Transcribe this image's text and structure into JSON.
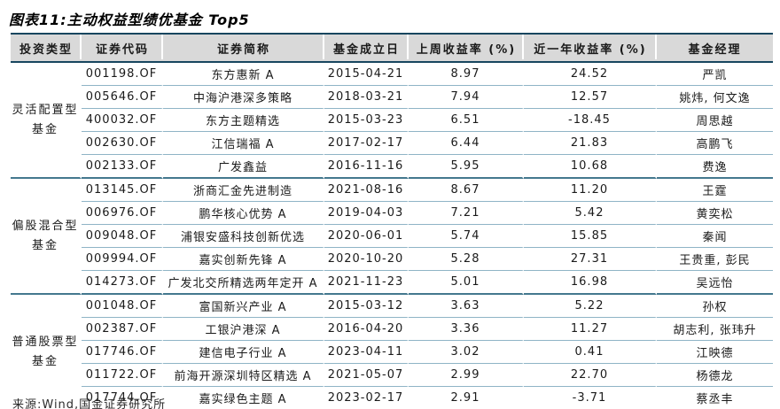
{
  "figure": {
    "title": "图表11:主动权益型绩优基金 Top5",
    "source": "来源:Wind,国金证券研究所"
  },
  "table": {
    "headers": [
      "投资类型",
      "证券代码",
      "证券简称",
      "基金成立日",
      "上周收益率 (%)",
      "近一年收益率 (%)",
      "基金经理"
    ],
    "groups": [
      {
        "type": "灵活配置型基金",
        "type_lines": [
          "灵活配置型",
          "基金"
        ],
        "rows": [
          [
            "001198.OF",
            "东方惠新 A",
            "2015-04-21",
            "8.97",
            "24.52",
            "严凯"
          ],
          [
            "005646.OF",
            "中海沪港深多策略",
            "2018-03-21",
            "7.94",
            "12.57",
            "姚炜, 何文逸"
          ],
          [
            "400032.OF",
            "东方主题精选",
            "2015-03-23",
            "6.51",
            "-18.45",
            "周思越"
          ],
          [
            "002630.OF",
            "江信瑞福 A",
            "2017-02-17",
            "6.44",
            "21.83",
            "高鹏飞"
          ],
          [
            "002133.OF",
            "广发鑫益",
            "2016-11-16",
            "5.95",
            "10.68",
            "费逸"
          ]
        ]
      },
      {
        "type": "偏股混合型基金",
        "type_lines": [
          "偏股混合型",
          "基金"
        ],
        "rows": [
          [
            "013145.OF",
            "浙商汇金先进制造",
            "2021-08-16",
            "8.67",
            "11.20",
            "王霆"
          ],
          [
            "006976.OF",
            "鹏华核心优势 A",
            "2019-04-03",
            "7.21",
            "5.42",
            "黄奕松"
          ],
          [
            "009048.OF",
            "浦银安盛科技创新优选",
            "2020-06-01",
            "5.74",
            "15.85",
            "秦闻"
          ],
          [
            "009994.OF",
            "嘉实创新先锋 A",
            "2020-10-20",
            "5.28",
            "27.31",
            "王贵重, 彭民"
          ],
          [
            "014273.OF",
            "广发北交所精选两年定开 A",
            "2021-11-23",
            "5.01",
            "16.98",
            "吴远怡"
          ]
        ]
      },
      {
        "type": "普通股票型基金",
        "type_lines": [
          "普通股票型",
          "基金"
        ],
        "rows": [
          [
            "001048.OF",
            "富国新兴产业 A",
            "2015-03-12",
            "3.63",
            "5.22",
            "孙权"
          ],
          [
            "002387.OF",
            "工银沪港深 A",
            "2016-04-20",
            "3.36",
            "11.27",
            "胡志利, 张玮升"
          ],
          [
            "017746.OF",
            "建信电子行业 A",
            "2023-04-11",
            "3.02",
            "0.41",
            "江映德"
          ],
          [
            "011722.OF",
            "前海开源深圳特区精选 A",
            "2021-05-07",
            "2.99",
            "22.70",
            "杨德龙"
          ],
          [
            "017744.OF",
            "嘉实绿色主题 A",
            "2023-02-17",
            "2.91",
            "-3.71",
            "蔡丞丰"
          ]
        ]
      }
    ]
  },
  "colors": {
    "header_bg": "#d9d9d9",
    "border_dark": "#17465f",
    "border_group": "#44788e",
    "border_row": "#8fb4c6",
    "text": "#1a1a1a"
  }
}
